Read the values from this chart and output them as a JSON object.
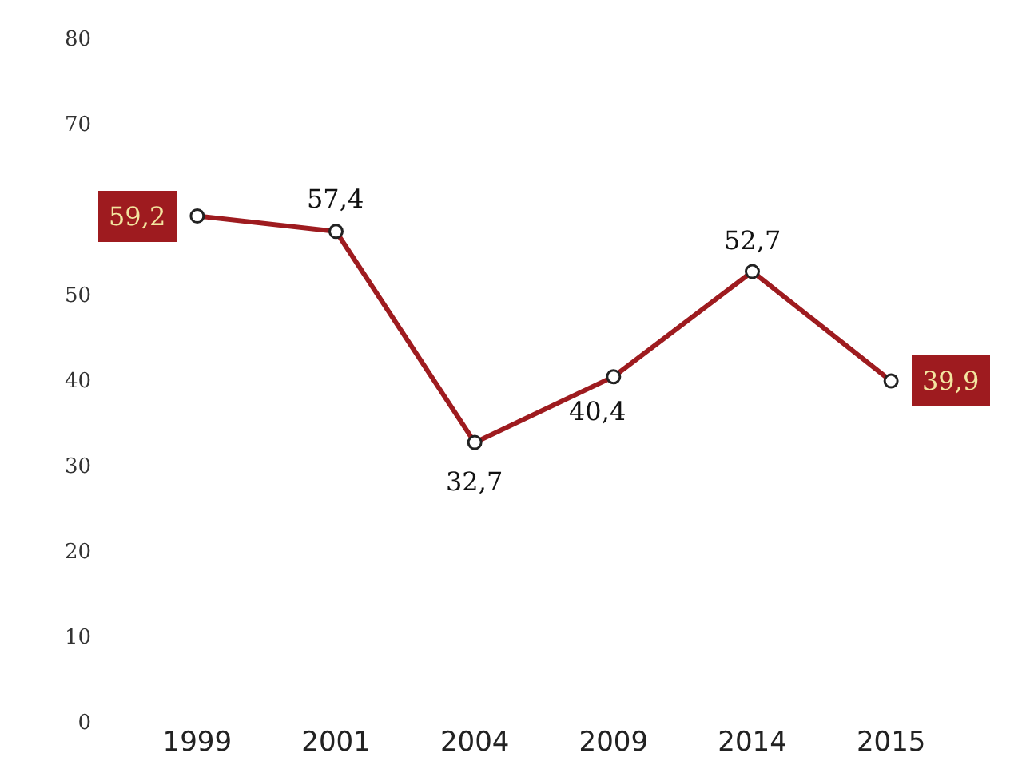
{
  "chart_data": {
    "type": "line",
    "categories": [
      "1999",
      "2001",
      "2004",
      "2009",
      "2014",
      "2015"
    ],
    "series": [
      {
        "color": "#9e1b1f",
        "values": [
          59.2,
          57.4,
          32.7,
          40.4,
          52.7,
          39.9
        ],
        "value_labels": [
          "59,2",
          "57,4",
          "32,7",
          "40,4",
          "52,7",
          "39,9"
        ]
      }
    ],
    "ylim": [
      0,
      80
    ],
    "yticks": [
      0,
      10,
      20,
      30,
      40,
      50,
      70,
      80
    ],
    "grid": false,
    "marker": "circle",
    "line_style": "solid"
  }
}
